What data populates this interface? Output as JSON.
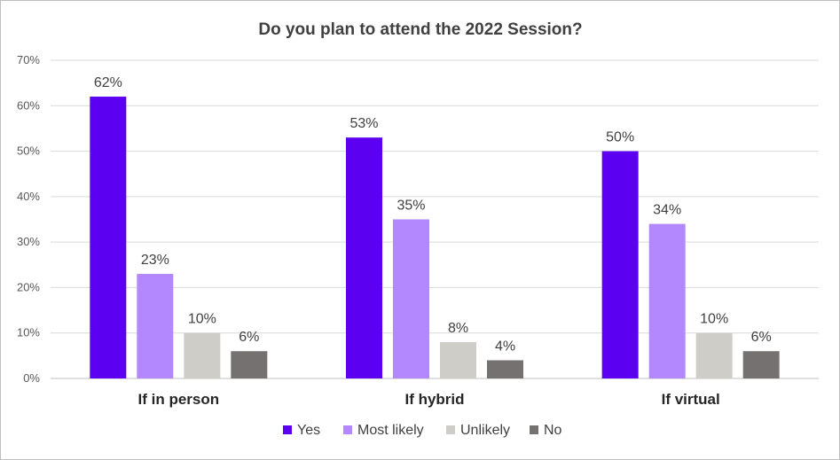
{
  "chart_data": {
    "type": "bar",
    "title": "Do you plan to attend the 2022 Session?",
    "categories": [
      "If in person",
      "If hybrid",
      "If virtual"
    ],
    "series": [
      {
        "name": "Yes",
        "color": "#5b00f0",
        "values": [
          62,
          53,
          50
        ],
        "labels": [
          "62%",
          "53%",
          "50%"
        ]
      },
      {
        "name": "Most likely",
        "color": "#b388ff",
        "values": [
          23,
          35,
          34
        ],
        "labels": [
          "23%",
          "35%",
          "34%"
        ]
      },
      {
        "name": "Unlikely",
        "color": "#cfcdc8",
        "values": [
          10,
          8,
          10
        ],
        "labels": [
          "10%",
          "8%",
          "10%"
        ]
      },
      {
        "name": "No",
        "color": "#767171",
        "values": [
          6,
          4,
          6
        ],
        "labels": [
          "6%",
          "4%",
          "6%"
        ]
      }
    ],
    "ylim": [
      0,
      70
    ],
    "yticks": [
      "0%",
      "10%",
      "20%",
      "30%",
      "40%",
      "50%",
      "60%",
      "70%"
    ],
    "grid": true,
    "legend": "bottom"
  }
}
